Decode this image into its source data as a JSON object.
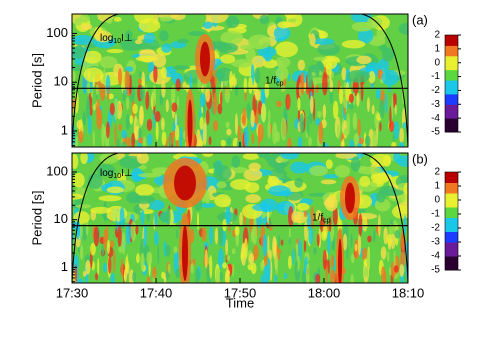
{
  "chart_data": [
    {
      "type": "wavelet",
      "panel_label": "(a)",
      "ylabel": "Period [s]",
      "yscale": "log",
      "ylim": [
        0.47,
        250
      ],
      "yticks": [
        1,
        10,
        100
      ],
      "xlim": [
        "17:30",
        "18:10"
      ],
      "xticks": [
        "17:30",
        "17:40",
        "17:50",
        "18:00",
        "18:10"
      ],
      "xtick_labels": false,
      "power_label": {
        "base": "log",
        "sub": "10",
        "tail": "I⊥"
      },
      "line_label": {
        "base": "1/f",
        "sub": "cp"
      },
      "line_period": 7.5,
      "clim": [
        -5,
        2
      ],
      "cticks": [
        2,
        1,
        0,
        -1,
        -2,
        -3,
        -4,
        -5
      ]
    },
    {
      "type": "wavelet",
      "panel_label": "(b)",
      "ylabel": "Period [s]",
      "xlabel": "Time",
      "yscale": "log",
      "ylim": [
        0.47,
        250
      ],
      "yticks": [
        1,
        10,
        100
      ],
      "xlim": [
        "17:30",
        "18:10"
      ],
      "xticks": [
        "17:30",
        "17:40",
        "17:50",
        "18:00",
        "18:10"
      ],
      "xtick_labels": true,
      "power_label": {
        "base": "log",
        "sub": "10",
        "tail": "I⊥"
      },
      "line_label": {
        "base": "1/f",
        "sub": "cp"
      },
      "line_period": 7.5,
      "clim": [
        -5,
        2
      ],
      "cticks": [
        2,
        1,
        0,
        -1,
        -2,
        -3,
        -4,
        -5
      ]
    }
  ]
}
